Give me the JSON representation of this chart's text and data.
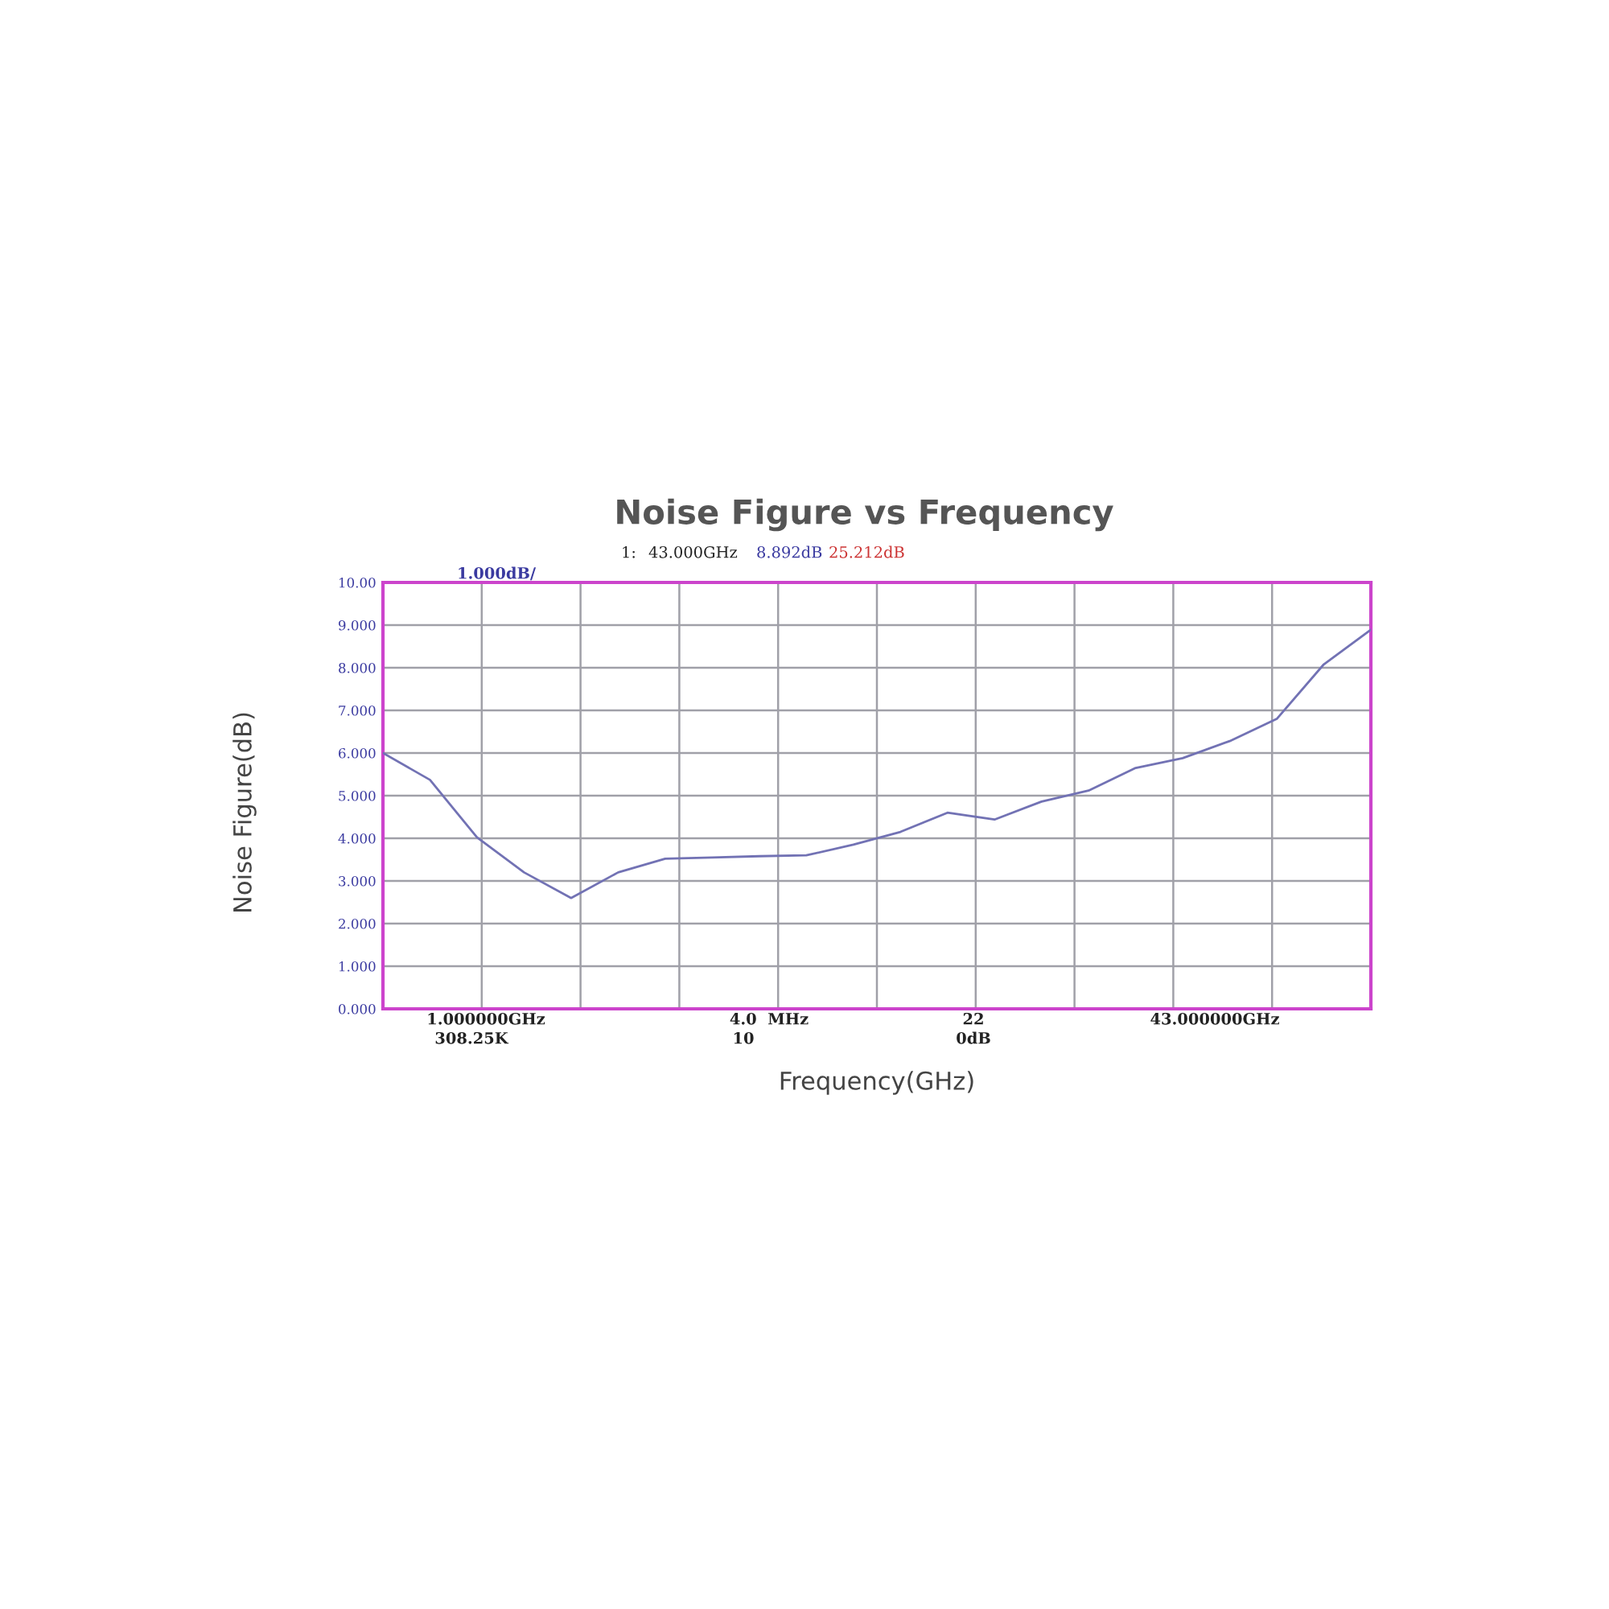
{
  "chart_data": {
    "type": "line",
    "title": "Noise Figure vs Frequency",
    "xlabel": "Frequency(GHz)",
    "ylabel": "Noise Figure(dB)",
    "categories": [
      null,
      null,
      null,
      null,
      null,
      null,
      null,
      null,
      null,
      null,
      null,
      null,
      null,
      null,
      null,
      null,
      null,
      null,
      null,
      null,
      null,
      null
    ],
    "series": [
      {
        "color": "#7272b4",
        "values": [
          6.0,
          5.37,
          4.02,
          3.2,
          2.6,
          3.2,
          3.52,
          3.55,
          3.58,
          3.6,
          3.85,
          4.15,
          4.6,
          4.44,
          4.86,
          5.12,
          5.65,
          5.88,
          6.28,
          6.8,
          8.08,
          8.89
        ]
      }
    ],
    "ylim": [
      0,
      10
    ],
    "yticks": [
      {
        "value": 0,
        "label": "0.000"
      },
      {
        "value": 1,
        "label": "1.000"
      },
      {
        "value": 2,
        "label": "2.000"
      },
      {
        "value": 3,
        "label": "3.000"
      },
      {
        "value": 4,
        "label": "4.000"
      },
      {
        "value": 5,
        "label": "5.000"
      },
      {
        "value": 6,
        "label": "6.000"
      },
      {
        "value": 7,
        "label": "7.000"
      },
      {
        "value": 8,
        "label": "8.000"
      },
      {
        "value": 9,
        "label": "9.000"
      },
      {
        "value": 10,
        "label": "10.00"
      }
    ],
    "grid": true,
    "marker": "none",
    "line_style": "solid",
    "annotations": [
      "1:",
      "43.000GHz",
      "8.892dB",
      "25.212dB",
      "1.000dB/",
      "1.000000GHz",
      "308.25K",
      "4.0  MHz",
      "10",
      "22",
      "0dB",
      "43.000000GHz"
    ]
  }
}
